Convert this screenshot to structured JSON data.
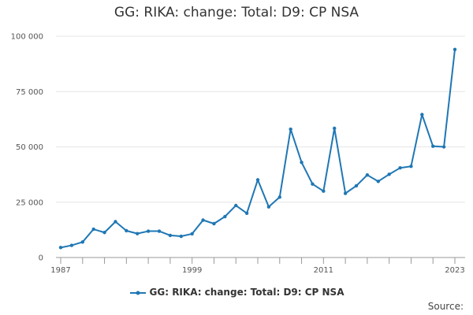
{
  "chart_data": {
    "type": "line",
    "title": "GG: RIKA: change: Total: D9: CP NSA",
    "xlabel": "",
    "ylabel": "",
    "x_ticks": [
      "1987",
      "1999",
      "2011",
      "2023"
    ],
    "y_ticks": [
      "0",
      "25 000",
      "50 000",
      "75 000",
      "100 000"
    ],
    "y_tick_values": [
      0,
      25000,
      50000,
      75000,
      100000
    ],
    "xlim": [
      1987,
      2023
    ],
    "ylim": [
      0,
      100000
    ],
    "grid": true,
    "legend_position": "bottom",
    "series": [
      {
        "name": "GG: RIKA: change: Total: D9: CP NSA",
        "color": "#1f77b4",
        "x": [
          1987,
          1988,
          1989,
          1990,
          1991,
          1992,
          1993,
          1994,
          1995,
          1996,
          1997,
          1998,
          1999,
          2000,
          2001,
          2002,
          2003,
          2004,
          2005,
          2006,
          2007,
          2008,
          2009,
          2010,
          2011,
          2012,
          2013,
          2014,
          2015,
          2016,
          2017,
          2018,
          2019,
          2020,
          2021,
          2022,
          2023
        ],
        "values": [
          4500,
          5500,
          7000,
          12800,
          11300,
          16200,
          12100,
          10800,
          11900,
          11900,
          10000,
          9600,
          10700,
          16900,
          15300,
          18500,
          23500,
          20000,
          35100,
          22900,
          27300,
          58000,
          43000,
          33200,
          30000,
          58400,
          29000,
          32400,
          37300,
          34400,
          37600,
          40500,
          41200,
          64600,
          50300,
          50000,
          94000
        ]
      }
    ]
  },
  "source_label": "Source:"
}
